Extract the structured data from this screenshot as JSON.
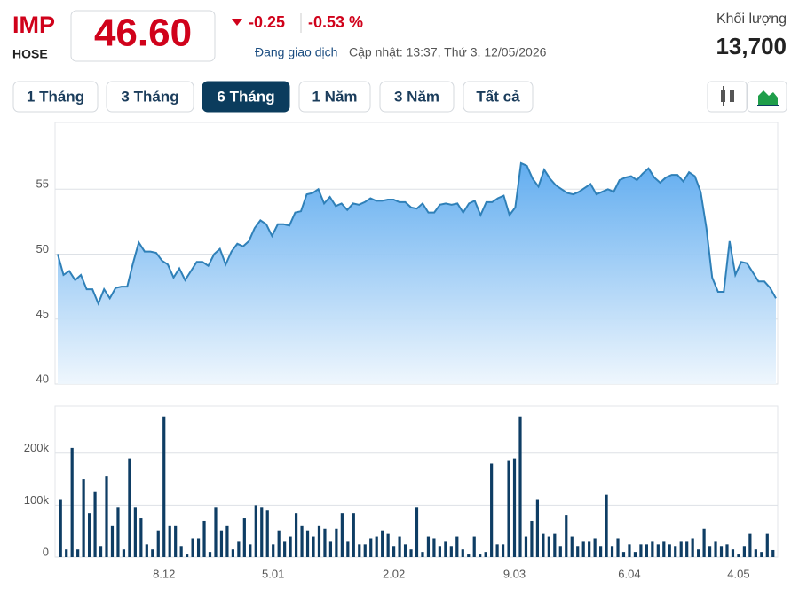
{
  "header": {
    "ticker": "IMP",
    "exchange": "HOSE",
    "price": "46.60",
    "change": "-0.25",
    "change_percent": "-0.53 %",
    "status": "Đang giao dịch",
    "updated": "Cập nhật: 13:37, Thứ 3, 12/05/2026",
    "volume_label": "Khối lượng",
    "volume": "13,700"
  },
  "range_buttons": [
    "1 Tháng",
    "3 Tháng",
    "6 Tháng",
    "1 Năm",
    "3 Năm",
    "Tất cả"
  ],
  "active_button": 2,
  "chart_data": [
    {
      "type": "area",
      "color": "#2f80b8",
      "fill": "#7dbcf2",
      "ylim": [
        40,
        60
      ],
      "yticks": [
        40,
        45,
        50,
        55
      ],
      "grid": true,
      "values": [
        50.0,
        48.4,
        48.7,
        48.0,
        48.4,
        47.3,
        47.3,
        46.2,
        47.3,
        46.6,
        47.4,
        47.5,
        47.5,
        49.3,
        50.9,
        50.2,
        50.2,
        50.1,
        49.5,
        49.2,
        48.2,
        48.9,
        48.0,
        48.7,
        49.4,
        49.4,
        49.1,
        50.0,
        50.4,
        49.2,
        50.2,
        50.8,
        50.6,
        51.0,
        52.0,
        52.6,
        52.3,
        51.4,
        52.3,
        52.3,
        52.2,
        53.2,
        53.3,
        54.6,
        54.7,
        55.0,
        53.9,
        54.4,
        53.7,
        53.9,
        53.4,
        53.9,
        53.8,
        54.0,
        54.3,
        54.1,
        54.1,
        54.2,
        54.2,
        54.0,
        54.0,
        53.6,
        53.5,
        53.9,
        53.2,
        53.2,
        53.8,
        53.9,
        53.8,
        53.9,
        53.2,
        53.9,
        54.1,
        53.0,
        54.0,
        54.0,
        54.3,
        54.5,
        53.0,
        53.6,
        57.0,
        56.8,
        55.8,
        55.2,
        56.5,
        55.8,
        55.3,
        55.0,
        54.7,
        54.6,
        54.8,
        55.1,
        55.4,
        54.6,
        54.8,
        55.0,
        54.8,
        55.7,
        55.9,
        56.0,
        55.7,
        56.2,
        56.6,
        55.9,
        55.5,
        55.9,
        56.1,
        56.1,
        55.6,
        56.3,
        56.0,
        54.8,
        52.0,
        48.2,
        47.1,
        47.1,
        51.0,
        48.4,
        49.4,
        49.3,
        48.6,
        47.9,
        47.9,
        47.4,
        46.6
      ]
    },
    {
      "type": "bar",
      "color": "#0e3d64",
      "ylim": [
        0,
        290000
      ],
      "yticks": [
        {
          "value": 0,
          "label": "0"
        },
        {
          "value": 100000,
          "label": "100k"
        },
        {
          "value": 200000,
          "label": "200k"
        }
      ],
      "grid": true,
      "categories": [
        null,
        null,
        null,
        null,
        null,
        null,
        null,
        null,
        null,
        null,
        null,
        null,
        null,
        null,
        null,
        null,
        null,
        null,
        "8.12",
        null,
        null,
        null,
        null,
        null,
        null,
        null,
        null,
        null,
        null,
        null,
        null,
        null,
        null,
        null,
        null,
        null,
        null,
        "5.01",
        null,
        null,
        null,
        null,
        null,
        null,
        null,
        null,
        null,
        null,
        null,
        null,
        null,
        null,
        null,
        null,
        null,
        null,
        null,
        null,
        "2.02",
        null,
        null,
        null,
        null,
        null,
        null,
        null,
        null,
        null,
        null,
        null,
        null,
        null,
        null,
        null,
        null,
        null,
        null,
        null,
        null,
        "9.03",
        null,
        null,
        null,
        null,
        null,
        null,
        null,
        null,
        null,
        null,
        null,
        null,
        null,
        null,
        null,
        null,
        null,
        null,
        null,
        "6.04",
        null,
        null,
        null,
        null,
        null,
        null,
        null,
        null,
        null,
        null,
        null,
        null,
        null,
        null,
        null,
        null,
        null,
        null,
        "4.05",
        null,
        null,
        null,
        null,
        null,
        null
      ],
      "values": [
        110000,
        15000,
        210000,
        15000,
        150000,
        85000,
        125000,
        20000,
        155000,
        60000,
        95000,
        15000,
        190000,
        95000,
        75000,
        25000,
        15000,
        50000,
        270000,
        60000,
        60000,
        20000,
        5000,
        35000,
        35000,
        70000,
        10000,
        95000,
        50000,
        60000,
        15000,
        30000,
        75000,
        25000,
        100000,
        95000,
        90000,
        25000,
        50000,
        30000,
        40000,
        85000,
        60000,
        50000,
        40000,
        60000,
        55000,
        30000,
        55000,
        85000,
        30000,
        85000,
        25000,
        25000,
        35000,
        40000,
        50000,
        45000,
        20000,
        40000,
        25000,
        15000,
        95000,
        10000,
        40000,
        35000,
        20000,
        30000,
        20000,
        40000,
        15000,
        5000,
        40000,
        5000,
        10000,
        180000,
        25000,
        25000,
        185000,
        190000,
        270000,
        40000,
        70000,
        110000,
        45000,
        40000,
        45000,
        20000,
        80000,
        40000,
        20000,
        30000,
        30000,
        35000,
        20000,
        120000,
        20000,
        35000,
        10000,
        25000,
        10000,
        25000,
        25000,
        30000,
        25000,
        30000,
        25000,
        20000,
        30000,
        30000,
        35000,
        15000,
        55000,
        20000,
        30000,
        20000,
        25000,
        15000,
        5000,
        20000,
        45000,
        15000,
        10000,
        45000,
        13700
      ]
    }
  ]
}
